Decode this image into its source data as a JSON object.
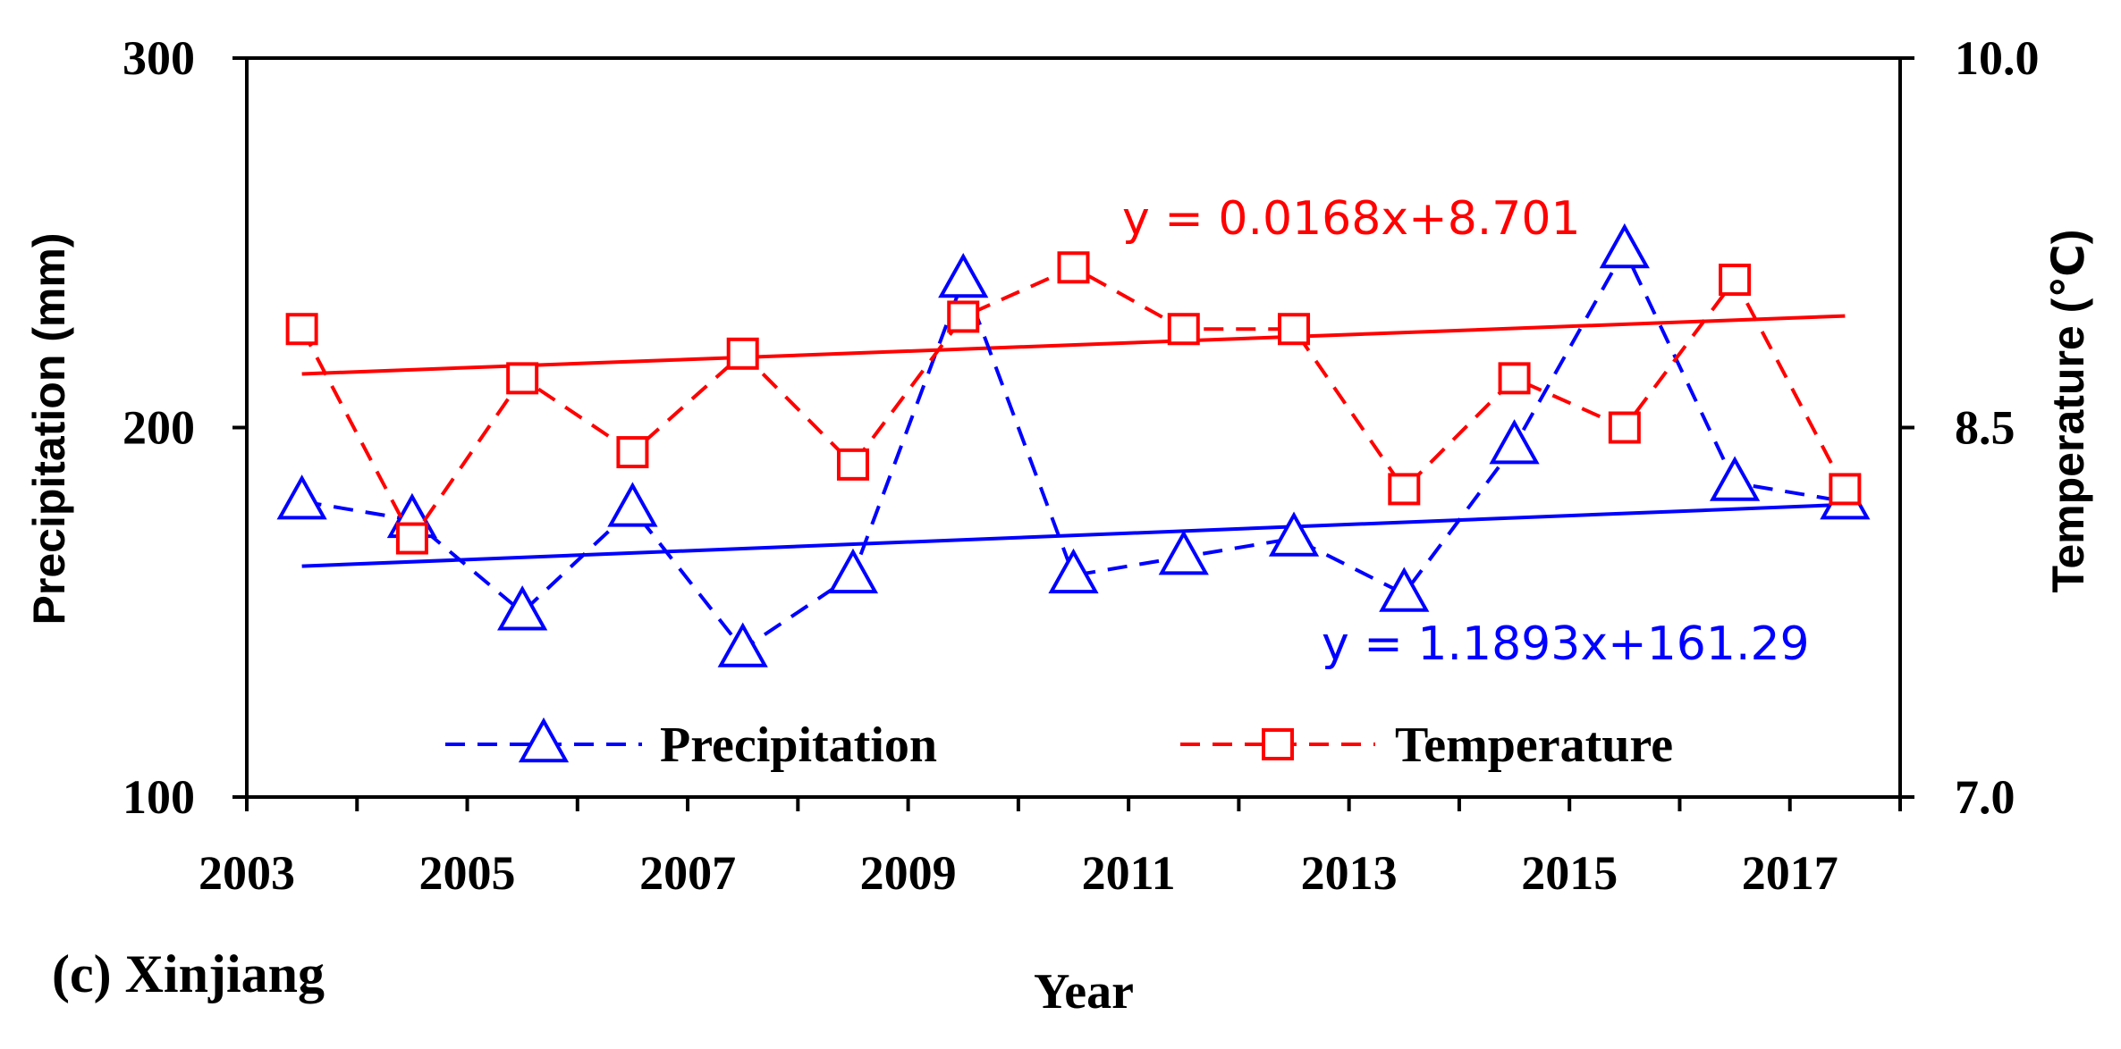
{
  "chart_data": {
    "type": "line",
    "panel_label": "(c) Xinjiang",
    "xlabel": "Year",
    "ylabel_left": "Precipitation (mm)",
    "ylabel_right": "Temperature (℃)",
    "ylim_left": [
      100,
      300
    ],
    "ylim_right": [
      7.0,
      10.0
    ],
    "xlim": [
      2002.5,
      2017.5
    ],
    "x": [
      2003,
      2004,
      2005,
      2006,
      2007,
      2008,
      2009,
      2010,
      2011,
      2012,
      2013,
      2014,
      2015,
      2016,
      2017
    ],
    "x_tick_labels": [
      "2003",
      "2005",
      "2007",
      "2009",
      "2011",
      "2013",
      "2015",
      "2017"
    ],
    "y_left_tick_labels": [
      "100",
      "200",
      "300"
    ],
    "y_right_tick_labels": [
      "7.0",
      "8.5",
      "10.0"
    ],
    "grid": false,
    "legend_position": "bottom-center",
    "colors": {
      "precipitation": "#0000ff",
      "temperature": "#ff0000",
      "axis": "#000000"
    },
    "series": [
      {
        "name": "Precipitation",
        "axis": "left",
        "marker": "triangle",
        "values": [
          180,
          175,
          150,
          178,
          140,
          160,
          240,
          160,
          165,
          170,
          155,
          195,
          248,
          185,
          180
        ],
        "trend": {
          "slope": 1.1893,
          "intercept": 161.29,
          "label": "y = 1.1893x+161.29"
        }
      },
      {
        "name": "Temperature",
        "axis": "right",
        "marker": "square",
        "values": [
          8.9,
          8.05,
          8.7,
          8.4,
          8.8,
          8.35,
          8.95,
          9.15,
          8.9,
          8.9,
          8.25,
          8.7,
          8.5,
          9.1,
          8.25
        ],
        "trend": {
          "slope": 0.0168,
          "intercept": 8.701,
          "label": "y = 0.0168x+8.701"
        }
      }
    ]
  }
}
